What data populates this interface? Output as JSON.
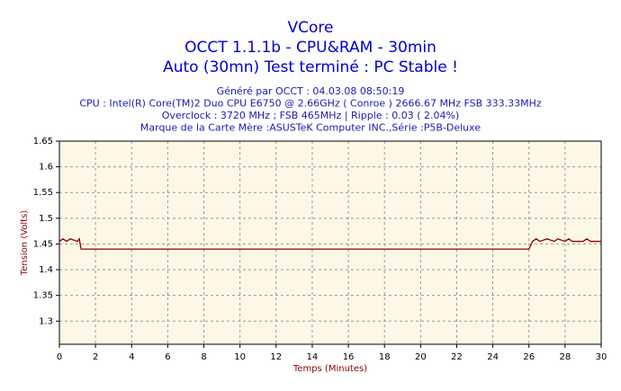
{
  "chart_data": {
    "type": "line",
    "title": [
      "VCore",
      "OCCT 1.1.1b - CPU&RAM - 30min",
      "Auto (30mn) Test terminé : PC Stable !"
    ],
    "subtitle": [
      "Généré par OCCT : 04.03.08 08:50:19",
      "CPU : Intel(R) Core(TM)2 Duo CPU E6750 @ 2.66GHz ( Conroe ) 2666.67 MHz FSB 333.33MHz",
      "Overclock : 3720 MHz ; FSB 465MHz | Ripple : 0.03 ( 2.04%)",
      "Marque de la Carte Mère :ASUSTeK Computer INC.,Série :P5B-Deluxe"
    ],
    "x_label": "Temps (Minutes)",
    "y_label": "Tension (Volts)",
    "x": [
      0,
      0.2,
      0.4,
      0.6,
      1.0,
      1.1,
      1.2,
      26.0,
      26.2,
      26.4,
      26.6,
      27,
      27.4,
      27.6,
      28,
      28.2,
      28.4,
      29,
      29.2,
      29.4,
      30
    ],
    "series": [
      {
        "color": "#8b0000",
        "values": [
          1.455,
          1.46,
          1.455,
          1.46,
          1.455,
          1.46,
          1.44,
          1.44,
          1.455,
          1.46,
          1.455,
          1.46,
          1.455,
          1.46,
          1.455,
          1.46,
          1.455,
          1.455,
          1.46,
          1.455,
          1.455
        ]
      }
    ],
    "xlim": [
      0,
      30
    ],
    "xticks": [
      0,
      2,
      4,
      6,
      8,
      10,
      12,
      14,
      16,
      18,
      20,
      22,
      24,
      26,
      28,
      30
    ],
    "ylim": [
      1.255,
      1.65
    ],
    "yticks": [
      1.3,
      1.35,
      1.4,
      1.45,
      1.5,
      1.55,
      1.6,
      1.65
    ],
    "grid": true
  }
}
